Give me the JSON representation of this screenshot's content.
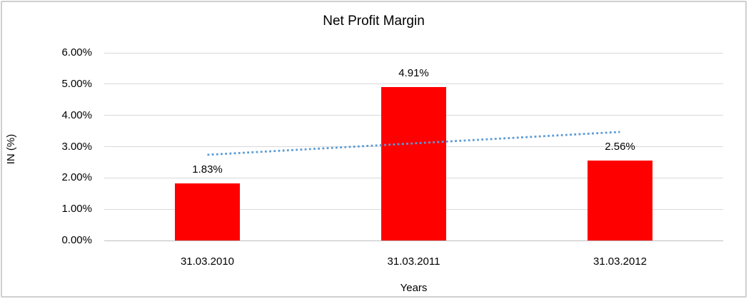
{
  "chart_data": {
    "type": "bar",
    "title": "Net Profit Margin",
    "xlabel": "Years",
    "ylabel": "IN (%)",
    "categories": [
      "31.03.2010",
      "31.03.2011",
      "31.03.2012"
    ],
    "values": [
      1.83,
      4.91,
      2.56
    ],
    "data_labels": [
      "1.83%",
      "4.91%",
      "2.56%"
    ],
    "ylim": [
      0,
      6
    ],
    "ytick_step": 1,
    "ytick_labels": [
      "0.00%",
      "1.00%",
      "2.00%",
      "3.00%",
      "4.00%",
      "5.00%",
      "6.00%"
    ],
    "grid": true,
    "legend": "none",
    "bar_color": "#FF0000",
    "gridline_color": "#D9D9D9",
    "axis_line_color": "#BFBFBF",
    "frame_border_color": "#D0CECE",
    "text_color": "#000000",
    "trendline": {
      "type": "linear",
      "style": "dotted",
      "color": "#5B9BD5",
      "start_value": 2.74,
      "end_value": 3.47
    }
  }
}
